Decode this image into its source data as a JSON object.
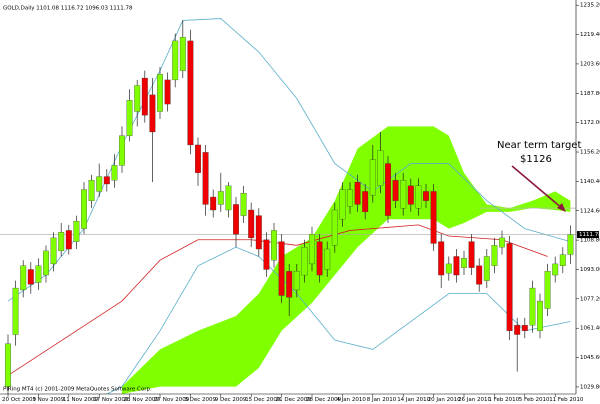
{
  "chart_data": {
    "type": "candlestick",
    "title": "GOLD,Daily  1101.08 1116.72 1096.03 1111.78",
    "footer": "PlRing MT4 (c) 2001-2009 MetaQuotes Software Corp.",
    "annotation": [
      "Near term target",
      "$1126"
    ],
    "categories": [
      "20 Oct 2009",
      null,
      null,
      null,
      "3 Nov 2009",
      null,
      null,
      null,
      "11 Nov 2009",
      null,
      null,
      null,
      "17 Nov 2009",
      null,
      null,
      null,
      "23 Nov 2009",
      null,
      null,
      null,
      "27 Nov 2009",
      null,
      null,
      null,
      "3 Dec 2009",
      null,
      null,
      null,
      "9 Dec 2009",
      null,
      null,
      null,
      "15 Dec 2009",
      null,
      null,
      null,
      "21 Dec 2009",
      null,
      null,
      null,
      "28 Dec 2009",
      null,
      null,
      null,
      "4 Jan 2010",
      null,
      null,
      null,
      "8 Jan 2010",
      null,
      null,
      null,
      "14 Jan 2010",
      null,
      null,
      null,
      "20 Jan 2010",
      null,
      null,
      null,
      "26 Jan 2010",
      null,
      null,
      null,
      "1 Feb 2010",
      null,
      null,
      null,
      "5 Feb 2010",
      null,
      null,
      null,
      "11 Feb 2010",
      null,
      null
    ],
    "open": [
      1030,
      1058,
      1082,
      1093,
      1086,
      1090,
      1096,
      1103,
      1114,
      1108,
      1115,
      1130,
      1135,
      1143,
      1141,
      1149,
      1165,
      1178,
      1196,
      1187,
      1178,
      1195,
      1195,
      1200,
      1216,
      1160,
      1156,
      1132,
      1128,
      1125,
      1128,
      1122,
      1125,
      1122,
      1109,
      1098,
      1108,
      1092,
      1082,
      1090,
      1096,
      1108,
      1093,
      1106,
      1120,
      1127,
      1140,
      1135,
      1133,
      1138,
      1150,
      1141,
      1126,
      1138,
      1126,
      1135,
      1135,
      1108,
      1091,
      1100,
      1094,
      1108,
      1095,
      1087,
      1095,
      1105,
      1107,
      1063,
      1063,
      1063,
      1060,
      1072,
      1090,
      1095,
      1101.08
    ],
    "high": [
      1058,
      1087,
      1098,
      1097,
      1099,
      1106,
      1113,
      1118,
      1117,
      1122,
      1140,
      1144,
      1150,
      1147,
      1155,
      1170,
      1190,
      1195,
      1200,
      1196,
      1202,
      1199,
      1220,
      1227,
      1222,
      1164,
      1160,
      1136,
      1145,
      1140,
      1132,
      1138,
      1129,
      1126,
      1113,
      1118,
      1112,
      1096,
      1096,
      1109,
      1116,
      1112,
      1108,
      1129,
      1140,
      1140,
      1144,
      1139,
      1160,
      1167,
      1154,
      1145,
      1145,
      1142,
      1142,
      1139,
      1139,
      1112,
      1100,
      1104,
      1103,
      1112,
      1099,
      1104,
      1110,
      1114,
      1111,
      1067,
      1067,
      1087,
      1080,
      1096,
      1100,
      1105,
      1116.72
    ],
    "low": [
      1024,
      1052,
      1078,
      1080,
      1082,
      1086,
      1092,
      1100,
      1101,
      1104,
      1112,
      1126,
      1132,
      1135,
      1137,
      1145,
      1162,
      1170,
      1172,
      1140,
      1174,
      1178,
      1191,
      1196,
      1155,
      1138,
      1122,
      1121,
      1124,
      1121,
      1105,
      1118,
      1105,
      1100,
      1089,
      1094,
      1075,
      1068,
      1078,
      1086,
      1092,
      1086,
      1089,
      1102,
      1116,
      1123,
      1124,
      1120,
      1129,
      1134,
      1118,
      1126,
      1122,
      1124,
      1122,
      1126,
      1103,
      1083,
      1087,
      1086,
      1090,
      1090,
      1081,
      1083,
      1091,
      1101,
      1055,
      1038,
      1056,
      1059,
      1056,
      1068,
      1086,
      1091,
      1096.03
    ],
    "close": [
      1053,
      1083,
      1095,
      1085,
      1095,
      1103,
      1110,
      1113,
      1104,
      1119,
      1136,
      1141,
      1143,
      1139,
      1149,
      1165,
      1184,
      1192,
      1176,
      1167,
      1198,
      1182,
      1216,
      1218,
      1160,
      1145,
      1128,
      1125,
      1135,
      1138,
      1112,
      1134,
      1110,
      1104,
      1093,
      1114,
      1079,
      1078,
      1092,
      1105,
      1112,
      1090,
      1104,
      1125,
      1136,
      1136,
      1128,
      1124,
      1152,
      1157,
      1122,
      1130,
      1141,
      1128,
      1138,
      1130,
      1107,
      1090,
      1096,
      1090,
      1099,
      1094,
      1085,
      1100,
      1106,
      1110,
      1060,
      1058,
      1060,
      1083,
      1076,
      1092,
      1096,
      1101,
      1111.78
    ],
    "up_color": "#80ff00",
    "down_color": "#ee0000",
    "overlays": [
      {
        "color": "#5aaecb",
        "x": [
          0,
          5,
          10,
          15,
          20,
          23,
          28,
          33,
          38,
          43,
          48,
          53,
          58,
          63,
          68,
          74
        ],
        "values": [
          1076,
          1090,
          1115,
          1160,
          1200,
          1227,
          1228,
          1210,
          1185,
          1150,
          1135,
          1150,
          1150,
          1130,
          1115,
          1108
        ]
      },
      {
        "color": "#5aaecb",
        "x": [
          10,
          15,
          20,
          25,
          30,
          33,
          38,
          43,
          48,
          53,
          58,
          63,
          68,
          74
        ],
        "values": [
          1020,
          1030,
          1060,
          1095,
          1105,
          1100,
          1080,
          1055,
          1050,
          1065,
          1080,
          1080,
          1060,
          1065
        ]
      },
      {
        "color": "#d22020",
        "x": [
          0,
          15,
          20,
          25,
          32,
          38,
          45,
          54,
          58,
          65,
          71
        ],
        "values": [
          1036,
          1076,
          1098,
          1109,
          1109,
          1106,
          1114,
          1117,
          1111,
          1109,
          1100
        ]
      }
    ],
    "cloud": {
      "color": "#80ff00",
      "x": [
        15,
        20,
        25,
        30,
        33,
        36,
        40,
        43,
        46,
        50,
        56,
        58,
        60,
        63,
        66,
        69,
        72,
        74
      ],
      "upper": [
        1030,
        1050,
        1060,
        1068,
        1080,
        1100,
        1110,
        1130,
        1158,
        1170,
        1170,
        1165,
        1145,
        1128,
        1126,
        1130,
        1135,
        1130
      ],
      "lower": [
        1026,
        1030,
        1030,
        1030,
        1040,
        1060,
        1075,
        1090,
        1105,
        1120,
        1120,
        1115,
        1118,
        1124,
        1124,
        1126,
        1125,
        1124
      ]
    },
    "last_price": 1111.78,
    "target_level": 1126,
    "ylim": [
      1026,
      1238
    ],
    "yticks": [
      {
        "value": 1235.2,
        "label": "1235.20"
      },
      {
        "value": 1219.4,
        "label": "1219.40"
      },
      {
        "value": 1203.6,
        "label": "1203.60"
      },
      {
        "value": 1187.8,
        "label": "1187.80"
      },
      {
        "value": 1172,
        "label": "1172.00"
      },
      {
        "value": 1156.2,
        "label": "1156.20"
      },
      {
        "value": 1140.4,
        "label": "1140.40"
      },
      {
        "value": 1124.6,
        "label": "1124.60"
      },
      {
        "value": 1108.8,
        "label": "1108.80"
      },
      {
        "value": 1093,
        "label": "1093.00"
      },
      {
        "value": 1077.2,
        "label": "1077.20"
      },
      {
        "value": 1061.4,
        "label": "1061.40"
      },
      {
        "value": 1045.6,
        "label": "1045.60"
      },
      {
        "value": 1029.8,
        "label": "1029.80"
      }
    ]
  }
}
